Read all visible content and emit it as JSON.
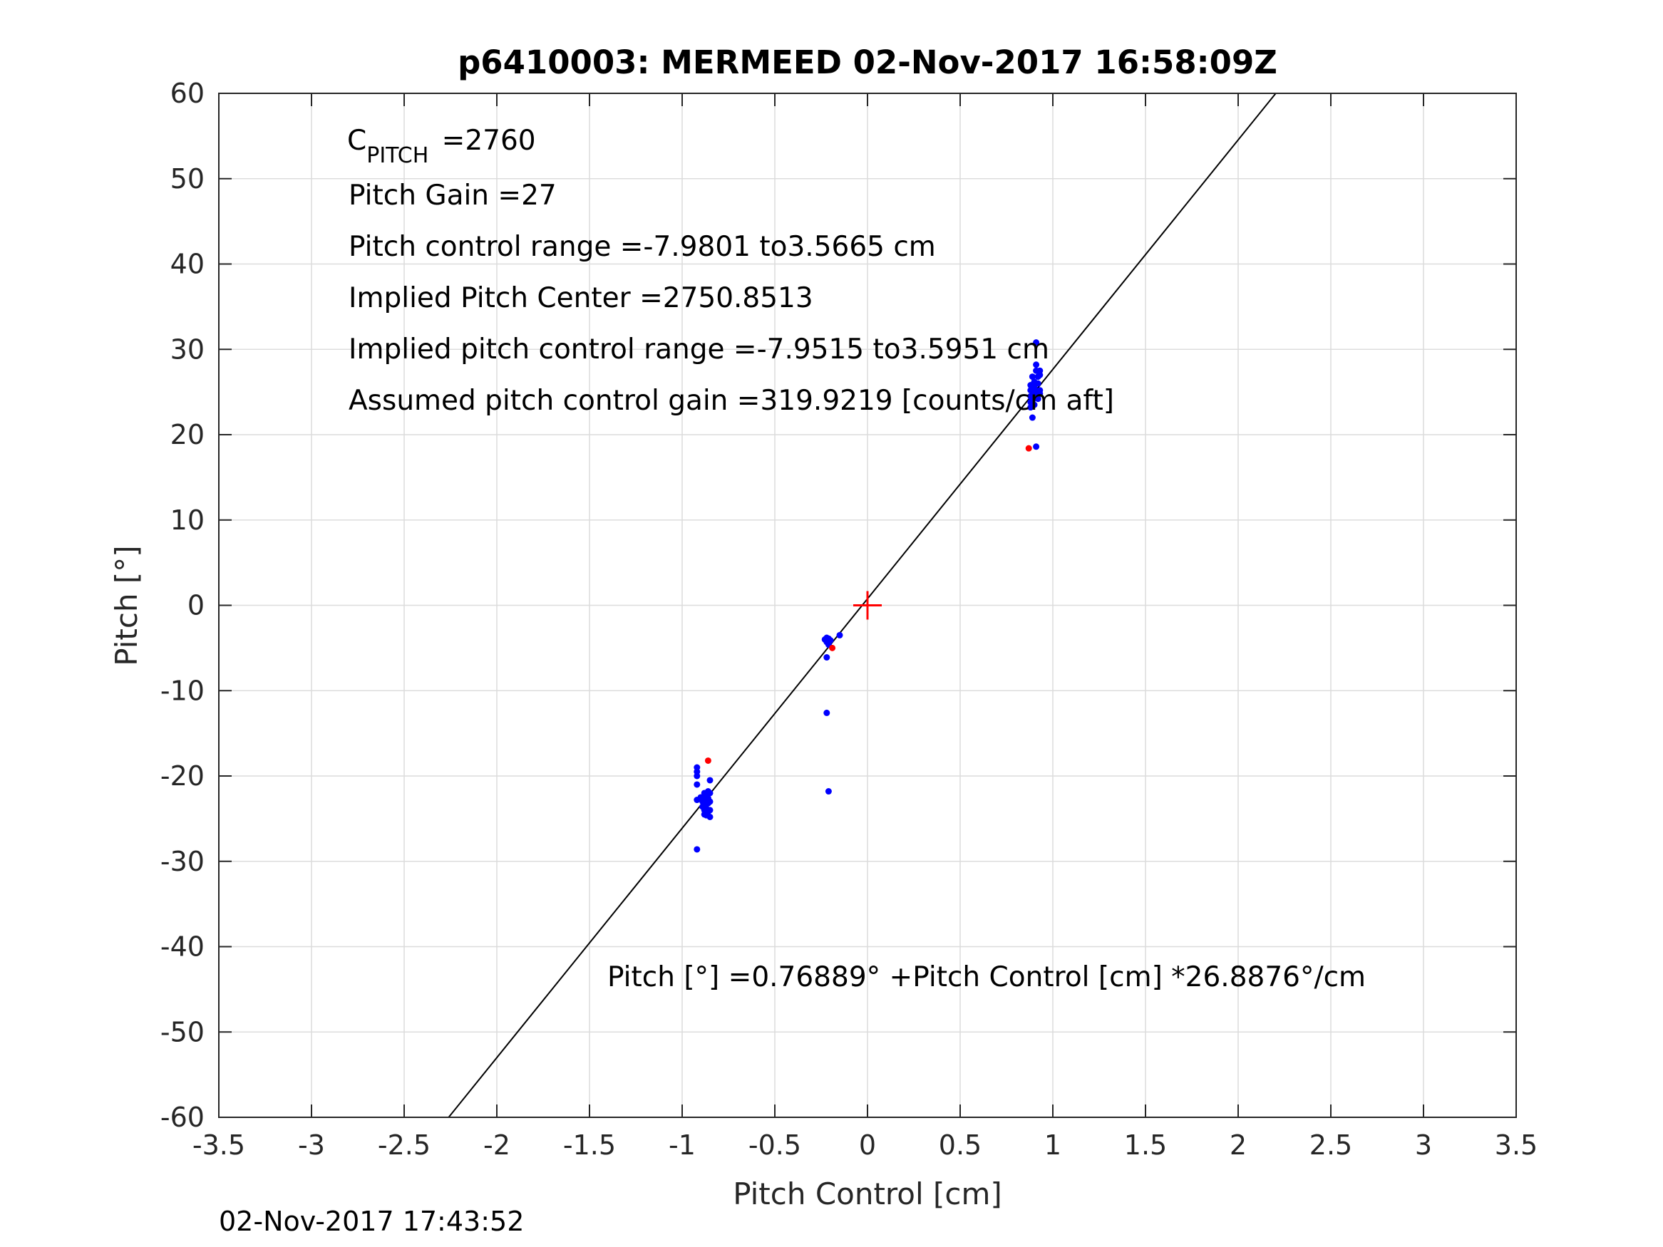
{
  "chart_data": {
    "type": "scatter",
    "title": "p6410003: MERMEED 02-Nov-2017 16:58:09Z",
    "xlabel": "Pitch Control [cm]",
    "ylabel": "Pitch [°]",
    "xlim": [
      -3.5,
      3.5
    ],
    "ylim": [
      -60,
      60
    ],
    "xticks": [
      -3.5,
      -3,
      -2.5,
      -2,
      -1.5,
      -1,
      -0.5,
      0,
      0.5,
      1,
      1.5,
      2,
      2.5,
      3,
      3.5
    ],
    "yticks": [
      -60,
      -50,
      -40,
      -30,
      -20,
      -10,
      0,
      10,
      20,
      30,
      40,
      50,
      60
    ],
    "grid": true,
    "annotations": {
      "c_pitch_main": "C",
      "c_pitch_sub": "PITCH",
      "c_pitch_value": " =2760",
      "pitch_gain": "Pitch Gain =27",
      "pitch_control_range": "Pitch control range =-7.9801 to3.5665 cm",
      "implied_center": "Implied Pitch Center =2750.8513",
      "implied_range": "Implied pitch control range =-7.9515 to3.5951 cm",
      "assumed_gain": "Assumed pitch control gain =319.9219 [counts/cm aft]",
      "fit_equation": "Pitch [°] =0.76889° +Pitch Control [cm] *26.8876°/cm"
    },
    "fit_line": {
      "intercept": 0.76889,
      "slope": 26.8876,
      "color": "#000000"
    },
    "center_marker": {
      "x": 0,
      "y": 0,
      "color": "#ff0000"
    },
    "series": [
      {
        "color": "#0000ff",
        "points": [
          [
            -0.92,
            -19.0
          ],
          [
            -0.92,
            -19.5
          ],
          [
            -0.92,
            -20.0
          ],
          [
            -0.92,
            -21.0
          ],
          [
            -0.92,
            -22.8
          ],
          [
            -0.92,
            -28.6
          ],
          [
            -0.9,
            -22.5
          ],
          [
            -0.89,
            -23.0
          ],
          [
            -0.89,
            -23.6
          ],
          [
            -0.88,
            -22.0
          ],
          [
            -0.88,
            -22.8
          ],
          [
            -0.88,
            -23.4
          ],
          [
            -0.88,
            -24.0
          ],
          [
            -0.88,
            -24.5
          ],
          [
            -0.87,
            -22.3
          ],
          [
            -0.87,
            -23.0
          ],
          [
            -0.87,
            -23.8
          ],
          [
            -0.87,
            -24.6
          ],
          [
            -0.86,
            -21.8
          ],
          [
            -0.86,
            -22.6
          ],
          [
            -0.86,
            -23.2
          ],
          [
            -0.86,
            -24.2
          ],
          [
            -0.85,
            -20.5
          ],
          [
            -0.85,
            -22.0
          ],
          [
            -0.85,
            -23.0
          ],
          [
            -0.85,
            -24.0
          ],
          [
            -0.85,
            -24.8
          ],
          [
            -0.23,
            -4.0
          ],
          [
            -0.22,
            -3.8
          ],
          [
            -0.22,
            -4.3
          ],
          [
            -0.21,
            -4.6
          ],
          [
            -0.21,
            -3.9
          ],
          [
            -0.2,
            -4.1
          ],
          [
            -0.22,
            -6.1
          ],
          [
            -0.15,
            -3.5
          ],
          [
            -0.22,
            -12.6
          ],
          [
            -0.21,
            -21.8
          ],
          [
            0.88,
            23.2
          ],
          [
            0.88,
            23.8
          ],
          [
            0.88,
            24.5
          ],
          [
            0.88,
            25.2
          ],
          [
            0.88,
            25.8
          ],
          [
            0.89,
            24.0
          ],
          [
            0.89,
            26.8
          ],
          [
            0.89,
            22.0
          ],
          [
            0.9,
            23.5
          ],
          [
            0.9,
            24.8
          ],
          [
            0.9,
            25.5
          ],
          [
            0.9,
            26.2
          ],
          [
            0.91,
            27.5
          ],
          [
            0.91,
            28.2
          ],
          [
            0.91,
            30.8
          ],
          [
            0.92,
            24.2
          ],
          [
            0.92,
            25.0
          ],
          [
            0.92,
            26.0
          ],
          [
            0.92,
            26.8
          ],
          [
            0.93,
            25.2
          ],
          [
            0.93,
            27.0
          ],
          [
            0.93,
            27.5
          ],
          [
            0.93,
            24.8
          ],
          [
            0.91,
            18.6
          ]
        ]
      },
      {
        "color": "#ff0000",
        "points": [
          [
            -0.86,
            -18.2
          ],
          [
            -0.19,
            -5.0
          ],
          [
            0.87,
            18.4
          ]
        ]
      }
    ]
  },
  "footer": {
    "timestamp": "02-Nov-2017 17:43:52"
  }
}
